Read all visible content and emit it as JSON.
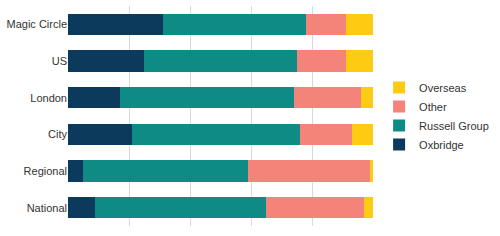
{
  "chart_data": {
    "type": "bar",
    "orientation": "horizontal",
    "stacked": true,
    "categories": [
      "Magic Circle",
      "US",
      "London",
      "City",
      "Regional",
      "National"
    ],
    "series": [
      {
        "name": "Oxbridge",
        "color": "#0b3a5d",
        "values": [
          31,
          25,
          17,
          21,
          5,
          9
        ]
      },
      {
        "name": "Russell Group",
        "color": "#0f8b86",
        "values": [
          47,
          50,
          57,
          55,
          54,
          56
        ]
      },
      {
        "name": "Other",
        "color": "#f4847a",
        "values": [
          13,
          16,
          22,
          17,
          40,
          32
        ]
      },
      {
        "name": "Overseas",
        "color": "#fdcb12",
        "values": [
          9,
          9,
          4,
          7,
          1,
          3
        ]
      }
    ],
    "xlim": [
      0,
      100
    ],
    "xticks": [
      0,
      20,
      40,
      60,
      80,
      100
    ],
    "grid": true,
    "legend": "right",
    "tick_labels": "y"
  }
}
